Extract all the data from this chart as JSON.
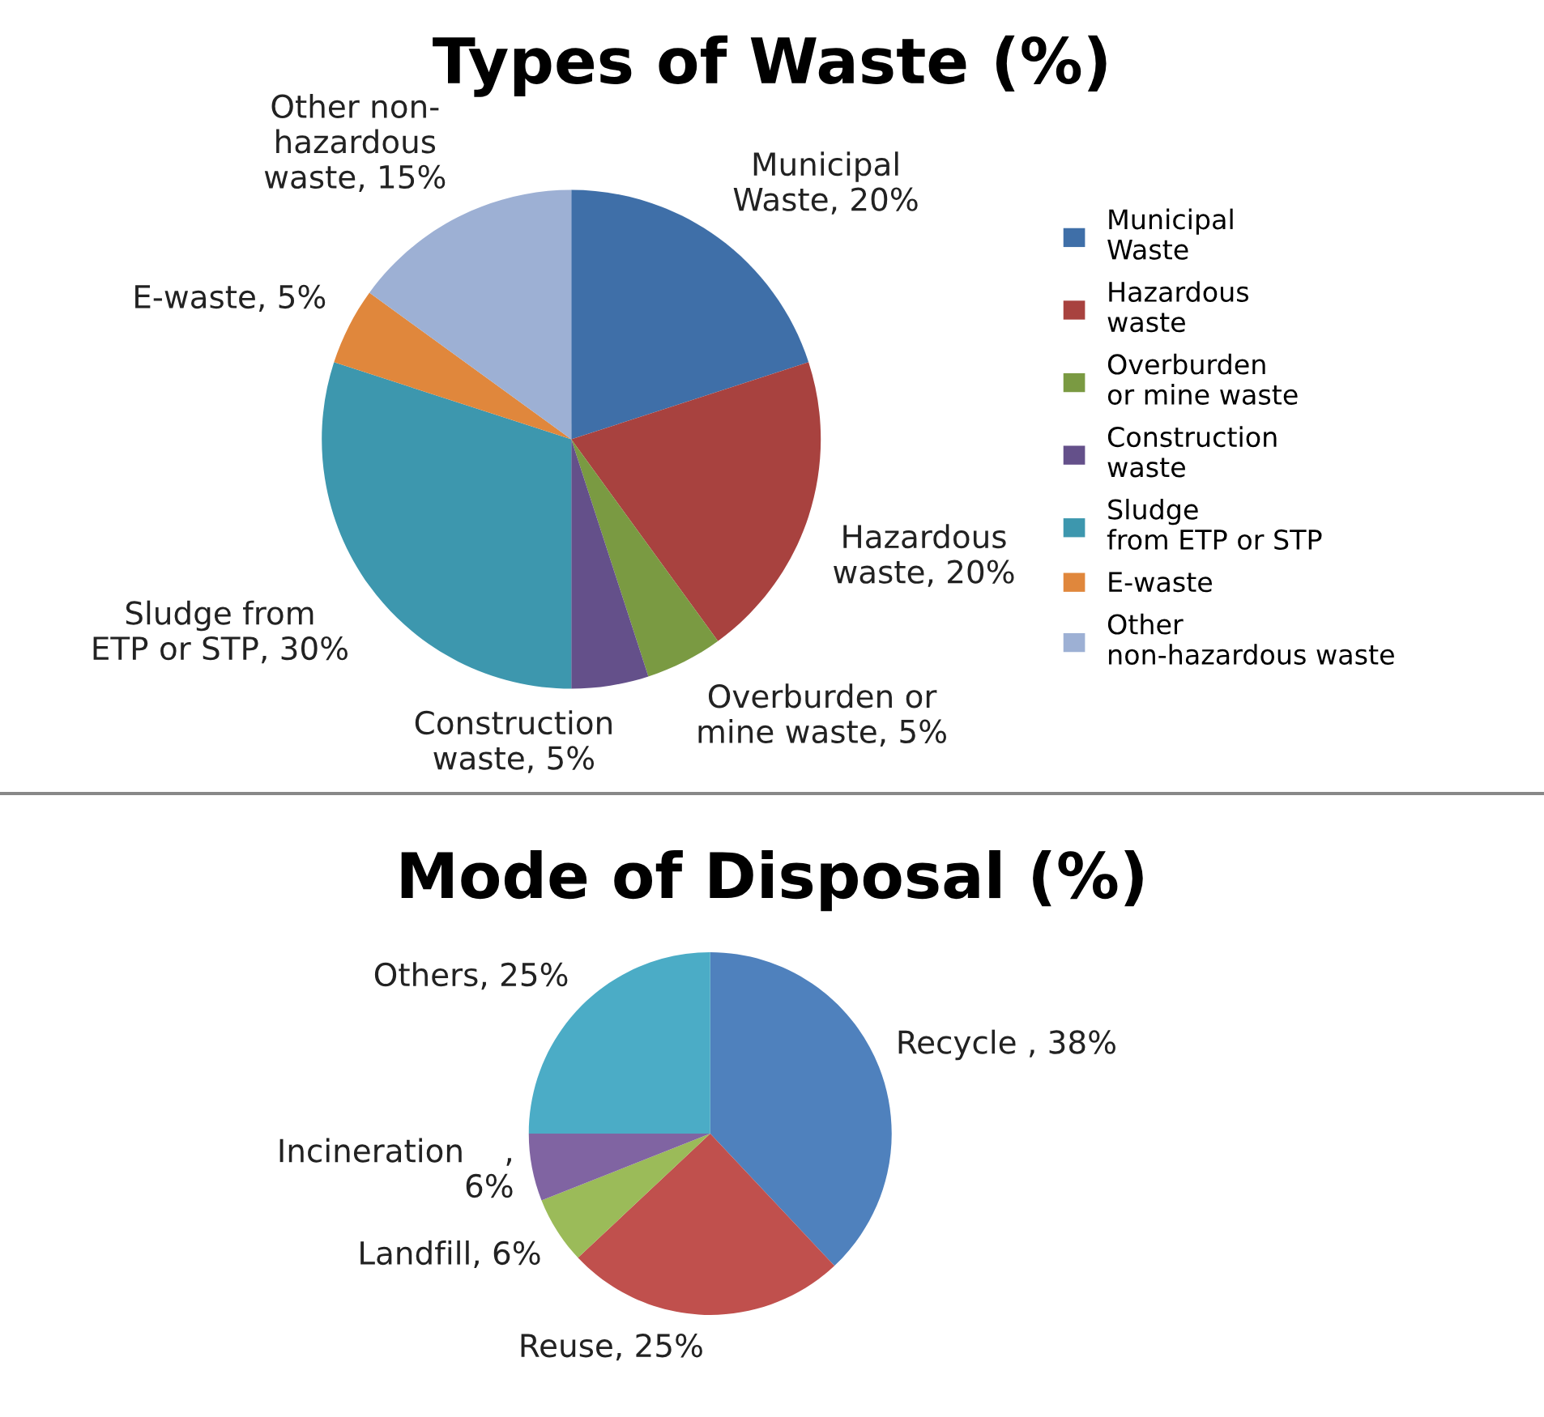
{
  "chart_data": [
    {
      "type": "pie",
      "title": "Types of Waste (%)",
      "categories": [
        "Municipal Waste",
        "Hazardous waste",
        "Overburden or mine waste",
        "Construction waste",
        "Sludge from ETP or STP",
        "E-waste",
        "Other non-hazardous waste"
      ],
      "values": [
        20,
        20,
        5,
        5,
        30,
        5,
        15
      ],
      "colors": [
        "#3f6fa8",
        "#a8423f",
        "#7a9a42",
        "#64508a",
        "#3d97ae",
        "#e0873c",
        "#9db0d4"
      ],
      "value_labels": [
        "Municipal\nWaste, 20%",
        "Hazardous\nwaste, 20%",
        "Overburden or\nmine waste, 5%",
        "Construction\nwaste, 5%",
        "Sludge from\nETP or STP, 30%",
        "E-waste, 5%",
        "Other non-\nhazardous\nwaste, 15%"
      ],
      "legend": "right"
    },
    {
      "type": "pie",
      "title": "Mode of Disposal (%)",
      "categories": [
        "Recycle",
        "Reuse",
        "Landfill",
        "Incineration",
        "Others"
      ],
      "values": [
        38,
        25,
        6,
        6,
        25
      ],
      "colors": [
        "#4f81bd",
        "#c0504d",
        "#9bbb59",
        "#8064a2",
        "#4bacc6"
      ],
      "value_labels": [
        " , 38%",
        ", 25%",
        ", 6%",
        ",\n6%",
        ", 25%"
      ]
    }
  ]
}
